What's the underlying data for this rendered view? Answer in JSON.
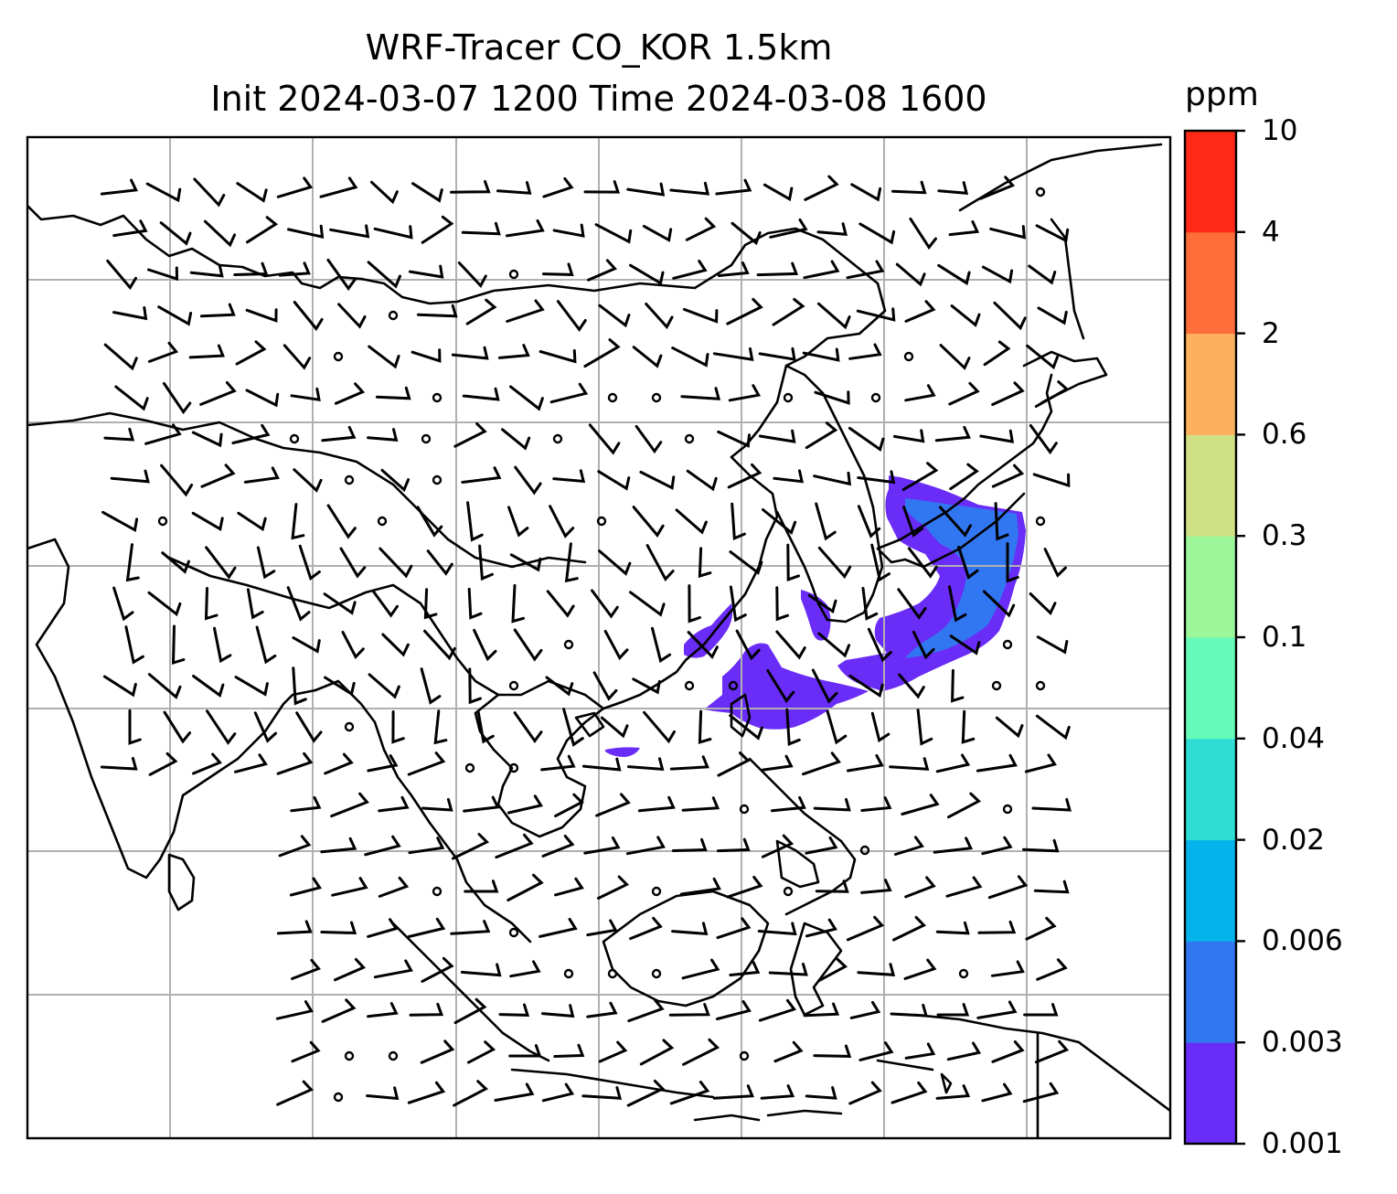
{
  "title": {
    "line1": "WRF-Tracer CO_KOR 1.5km",
    "line2": "Init 2024-03-07 1200 Time 2024-03-08 1600"
  },
  "colorbar": {
    "unit": "ppm",
    "ticks": [
      "0.001",
      "0.003",
      "0.006",
      "0.02",
      "0.04",
      "0.1",
      "0.3",
      "0.6",
      "2",
      "4",
      "10"
    ],
    "colors": [
      "#6a2cf7",
      "#3277f2",
      "#04b2ec",
      "#2fddd4",
      "#66fab9",
      "#9bf79a",
      "#cfe085",
      "#fdb15f",
      "#fe6e3a",
      "#fe2a17"
    ]
  },
  "map": {
    "features": [
      "coastlines",
      "lat-lon gridlines",
      "wind barbs",
      "CO tracer concentration"
    ],
    "colors": {
      "grid": "#b0b0b0",
      "coast": "#000000",
      "barb": "#000000"
    }
  }
}
